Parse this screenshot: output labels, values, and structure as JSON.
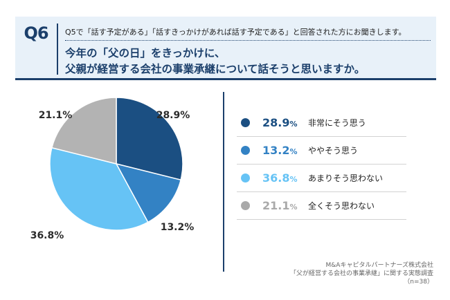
{
  "header": {
    "badge": "Q6",
    "sub_question": "Q5で「話す予定がある」「話すきっかけがあれば話す予定である」と回答された方にお聞きします。",
    "question_line1": "今年の「父の日」をきっかけに、",
    "question_line2": "父親が経営する会社の事業承継について話そうと思いますか。"
  },
  "chart_data": {
    "type": "pie",
    "title": "",
    "unit": "%",
    "categories": [
      "非常にそう思う",
      "ややそう思う",
      "あまりそう思わない",
      "全くそう思わない"
    ],
    "values": [
      28.9,
      13.2,
      36.8,
      21.1
    ],
    "labels": [
      "28.9%",
      "13.2%",
      "36.8%",
      "21.1%"
    ],
    "colors": [
      "#1b4f82",
      "#3382c4",
      "#66c3f5",
      "#b3b3b3"
    ],
    "start": "12 o'clock, clockwise",
    "legend_position": "right"
  },
  "legend": [
    {
      "pct": "28.9",
      "unit": "%",
      "label": "非常にそう思う",
      "color": "#1b4f82"
    },
    {
      "pct": "13.2",
      "unit": "%",
      "label": "ややそう思う",
      "color": "#3382c4"
    },
    {
      "pct": "36.8",
      "unit": "%",
      "label": "あまりそう思わない",
      "color": "#66c3f5"
    },
    {
      "pct": "21.1",
      "unit": "%",
      "label": "全くそう思わない",
      "color": "#a9a9a9"
    }
  ],
  "footer": {
    "company": "M&Aキャピタルパートナーズ株式会社",
    "survey": "「父が経営する会社の事業承継」に関する実態調査",
    "sample": "（n=38）"
  }
}
